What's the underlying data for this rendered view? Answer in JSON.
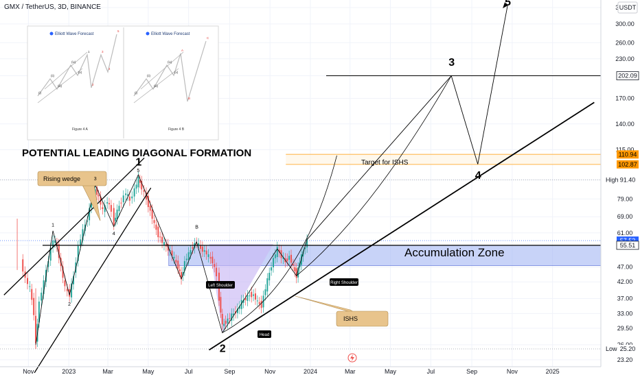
{
  "header": {
    "symbol_title": "GMX / TetherUS, 3D, BINANCE",
    "currency": "USDT"
  },
  "colors": {
    "up": "#26a69a",
    "down": "#ef5350",
    "zone": "#9aaef2",
    "ishs": "#c9b8f5",
    "target_line": "#ff9800",
    "callout": "#e8c48c"
  },
  "chart_data": {
    "type": "candlestick",
    "y_scale": "log",
    "ylim": [
      22,
      360
    ],
    "x_range": [
      "2022-09-19",
      "2025-03-15"
    ],
    "y_ticks": [
      23.2,
      26.0,
      29.5,
      33.0,
      37.0,
      42.0,
      47.0,
      55.51,
      61.0,
      69.0,
      79.0,
      91.4,
      115.0,
      140.0,
      170.0,
      202.09,
      230.0,
      260.0,
      300.0,
      340.0
    ],
    "x_ticks": [
      {
        "label": "Nov",
        "date": "2022-11-01"
      },
      {
        "label": "2023",
        "date": "2023-01-01"
      },
      {
        "label": "Mar",
        "date": "2023-03-01"
      },
      {
        "label": "May",
        "date": "2023-05-01"
      },
      {
        "label": "Jul",
        "date": "2023-07-01"
      },
      {
        "label": "Sep",
        "date": "2023-09-01"
      },
      {
        "label": "Nov",
        "date": "2023-11-01"
      },
      {
        "label": "2024",
        "date": "2024-01-01"
      },
      {
        "label": "Mar",
        "date": "2024-03-01"
      },
      {
        "label": "May",
        "date": "2024-05-01"
      },
      {
        "label": "Jul",
        "date": "2024-07-01"
      },
      {
        "label": "Sep",
        "date": "2024-09-01"
      },
      {
        "label": "Nov",
        "date": "2024-11-01"
      },
      {
        "label": "2025",
        "date": "2025-01-01"
      }
    ],
    "price_tags": [
      {
        "label": "202.09",
        "value": 202.09,
        "style": "outline"
      },
      {
        "label": "110.94",
        "value": 110.94,
        "style": "orange"
      },
      {
        "label": "102.87",
        "value": 102.87,
        "style": "orange"
      },
      {
        "label": "91.40",
        "value": 91.4,
        "style": "plain",
        "side_label": "High"
      },
      {
        "label": "57.53",
        "value": 57.53,
        "style": "blue"
      },
      {
        "label": "1d 2h",
        "value": 55.9,
        "style": "blue"
      },
      {
        "label": "55.51",
        "value": 55.51,
        "style": "outline"
      },
      {
        "label": "25.20",
        "value": 25.2,
        "style": "plain",
        "side_label": "Low"
      }
    ],
    "levels": {
      "resistance_202": 202.09,
      "target_high": 110.94,
      "target_low": 102.87,
      "high": 91.4,
      "low": 25.2,
      "neckline": 55.51,
      "zone_top": 55.51,
      "zone_bottom": 47.5
    },
    "price_path": [
      [
        "2022-10-20",
        49
      ],
      [
        "2022-10-27",
        43
      ],
      [
        "2022-11-03",
        40
      ],
      [
        "2022-11-09",
        33
      ],
      [
        "2022-11-12",
        26
      ],
      [
        "2022-11-17",
        36
      ],
      [
        "2022-11-24",
        42
      ],
      [
        "2022-12-01",
        50
      ],
      [
        "2022-12-08",
        58
      ],
      [
        "2022-12-14",
        55
      ],
      [
        "2022-12-20",
        47
      ],
      [
        "2022-12-26",
        40
      ],
      [
        "2023-01-02",
        38
      ],
      [
        "2023-01-08",
        44
      ],
      [
        "2023-01-15",
        55
      ],
      [
        "2023-01-22",
        62
      ],
      [
        "2023-01-29",
        68
      ],
      [
        "2023-02-04",
        78
      ],
      [
        "2023-02-10",
        85
      ],
      [
        "2023-02-15",
        80
      ],
      [
        "2023-02-21",
        72
      ],
      [
        "2023-02-28",
        78
      ],
      [
        "2023-03-06",
        72
      ],
      [
        "2023-03-10",
        66
      ],
      [
        "2023-03-15",
        72
      ],
      [
        "2023-03-21",
        78
      ],
      [
        "2023-03-28",
        83
      ],
      [
        "2023-04-03",
        78
      ],
      [
        "2023-04-10",
        85
      ],
      [
        "2023-04-16",
        92
      ],
      [
        "2023-04-21",
        86
      ],
      [
        "2023-04-28",
        79
      ],
      [
        "2023-05-04",
        72
      ],
      [
        "2023-05-10",
        65
      ],
      [
        "2023-05-16",
        60
      ],
      [
        "2023-05-22",
        57
      ],
      [
        "2023-05-28",
        55
      ],
      [
        "2023-06-03",
        53
      ],
      [
        "2023-06-09",
        50
      ],
      [
        "2023-06-15",
        47
      ],
      [
        "2023-06-20",
        43
      ],
      [
        "2023-06-25",
        49
      ],
      [
        "2023-07-01",
        52
      ],
      [
        "2023-07-07",
        55
      ],
      [
        "2023-07-13",
        57
      ],
      [
        "2023-07-19",
        54
      ],
      [
        "2023-07-25",
        53
      ],
      [
        "2023-07-31",
        51
      ],
      [
        "2023-08-06",
        49
      ],
      [
        "2023-08-12",
        44
      ],
      [
        "2023-08-16",
        37
      ],
      [
        "2023-08-21",
        30
      ],
      [
        "2023-08-26",
        31
      ],
      [
        "2023-09-01",
        32
      ],
      [
        "2023-09-07",
        33
      ],
      [
        "2023-09-13",
        34
      ],
      [
        "2023-09-19",
        36
      ],
      [
        "2023-09-25",
        37
      ],
      [
        "2023-10-01",
        38
      ],
      [
        "2023-10-07",
        38
      ],
      [
        "2023-10-13",
        36
      ],
      [
        "2023-10-19",
        35
      ],
      [
        "2023-10-25",
        40
      ],
      [
        "2023-10-31",
        45
      ],
      [
        "2023-11-06",
        50
      ],
      [
        "2023-11-12",
        54
      ],
      [
        "2023-11-18",
        51
      ],
      [
        "2023-11-24",
        49
      ],
      [
        "2023-11-30",
        51
      ],
      [
        "2023-12-06",
        47
      ],
      [
        "2023-12-11",
        44
      ],
      [
        "2023-12-16",
        49
      ],
      [
        "2023-12-21",
        53
      ],
      [
        "2023-12-27",
        57.53
      ]
    ],
    "annotations": {
      "formation_title": "POTENTIAL LEADING DIAGONAL FORMATION",
      "accumulation": "Accumulation Zone",
      "target": "Target for ISHS",
      "rising_wedge": "Rising wedge",
      "ishs": "ISHS",
      "left_shoulder": "Left Shoulder",
      "head": "Head",
      "right_shoulder": "Right Shoulder",
      "big_waves": [
        {
          "label": "1",
          "date": "2023-04-16",
          "value": 102
        },
        {
          "label": "2",
          "date": "2023-08-21",
          "value": 24.6
        },
        {
          "label": "3",
          "date": "2024-08-01",
          "value": 218
        },
        {
          "label": "4",
          "date": "2024-09-10",
          "value": 92
        },
        {
          "label": "5",
          "date": "2024-10-25",
          "value": 345
        }
      ],
      "small_waves": [
        {
          "label": "1",
          "date": "2022-12-08",
          "value": 64
        },
        {
          "label": "2",
          "date": "2023-01-02",
          "value": 35
        },
        {
          "label": "3",
          "date": "2023-02-10",
          "value": 91
        },
        {
          "label": "4",
          "date": "2023-03-10",
          "value": 60
        },
        {
          "label": "5",
          "date": "2023-04-16",
          "value": 97
        },
        {
          "label": "B",
          "date": "2023-07-13",
          "value": 63
        }
      ]
    },
    "inset": {
      "brand": "Elliott Wave Forecast",
      "panels": [
        {
          "caption": "Figure 4 A",
          "labels": [
            "(i)",
            "(ii)",
            "(iii)",
            "(iv)",
            "(v)",
            "1",
            "2",
            "3",
            "4",
            "5"
          ]
        },
        {
          "caption": "Figure 4 B",
          "labels": [
            "(i)",
            "(ii)",
            "(iii)",
            "(iv)",
            "(v)",
            "A",
            "B",
            "C"
          ]
        }
      ]
    }
  }
}
